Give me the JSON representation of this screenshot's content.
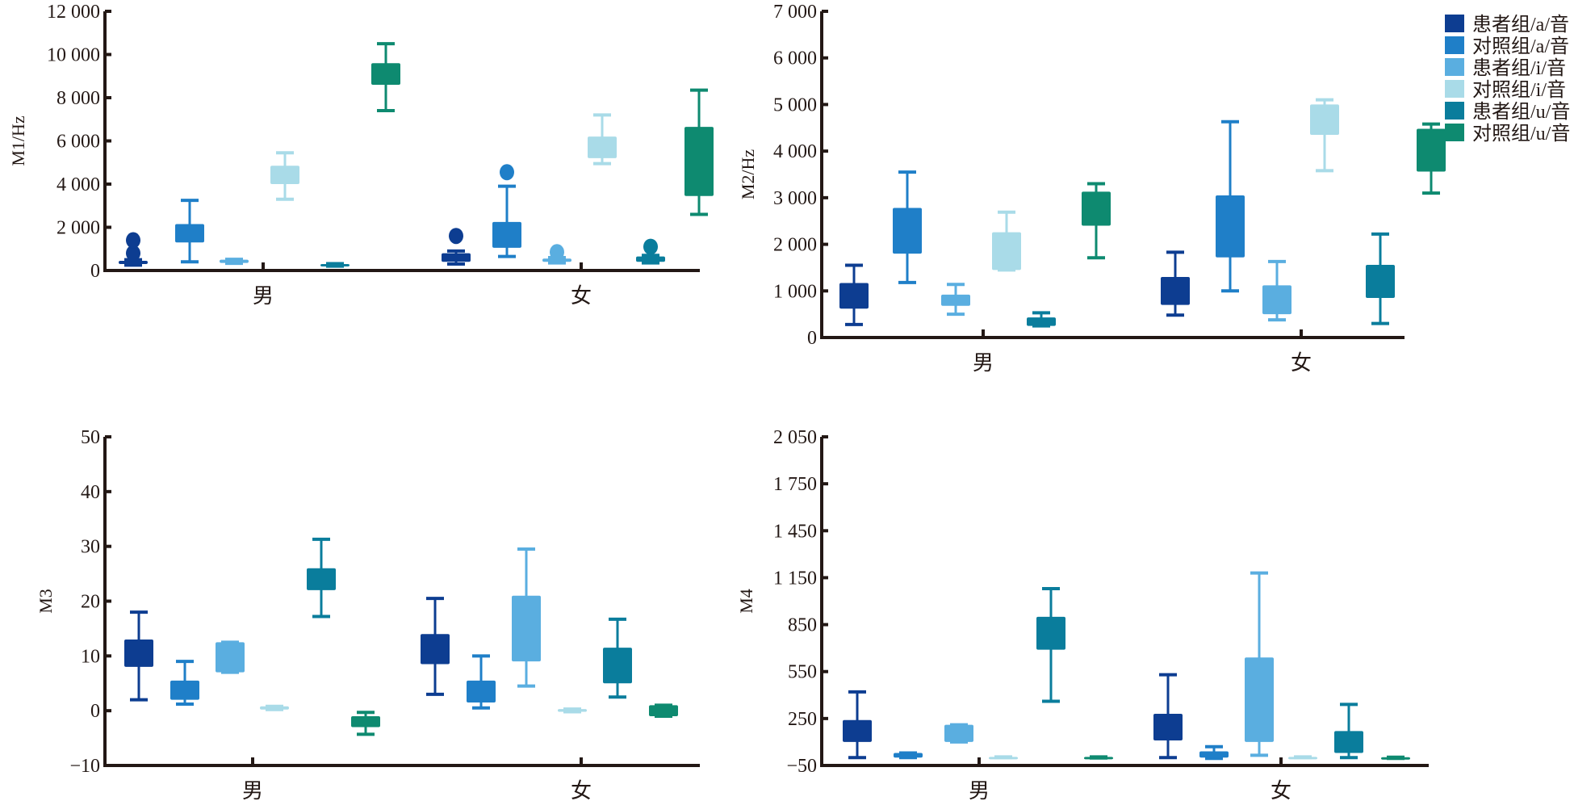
{
  "legend": {
    "position": "top-right",
    "items": [
      {
        "label": "患者组/a/音",
        "color": "#0d3d91"
      },
      {
        "label": "对照组/a/音",
        "color": "#1f7fc8"
      },
      {
        "label": "患者组/i/音",
        "color": "#5aaee0"
      },
      {
        "label": "对照组/i/音",
        "color": "#a9dbe8"
      },
      {
        "label": "患者组/u/音",
        "color": "#0a7d9c"
      },
      {
        "label": "对照组/u/音",
        "color": "#0e8a70"
      }
    ]
  },
  "chart_data": [
    {
      "type": "box",
      "id": "m1",
      "title": "",
      "ylabel": "M1/Hz",
      "xlabel": "",
      "ylim": [
        0,
        12000
      ],
      "yticks": [
        0,
        2000,
        4000,
        6000,
        8000,
        10000,
        12000
      ],
      "ytick_labels": [
        "0",
        "2 000",
        "4 000",
        "6 000",
        "8 000",
        "10 000",
        "12 000"
      ],
      "categories": [
        "男",
        "女"
      ],
      "series": [
        {
          "name": "患者组/a/音",
          "boxes": [
            {
              "min": 250,
              "q1": 300,
              "q3": 450,
              "max": 500,
              "outliers": [
                800,
                1400
              ]
            },
            {
              "min": 300,
              "q1": 400,
              "q3": 800,
              "max": 900,
              "outliers": [
                1600
              ]
            }
          ]
        },
        {
          "name": "对照组/a/音",
          "boxes": [
            {
              "min": 400,
              "q1": 1300,
              "q3": 2150,
              "max": 3250,
              "outliers": []
            },
            {
              "min": 650,
              "q1": 1050,
              "q3": 2250,
              "max": 3900,
              "outliers": [
                4550
              ]
            }
          ]
        },
        {
          "name": "患者组/i/音",
          "boxes": [
            {
              "min": 330,
              "q1": 350,
              "q3": 500,
              "max": 520,
              "outliers": []
            },
            {
              "min": 350,
              "q1": 400,
              "q3": 550,
              "max": 600,
              "outliers": [
                850
              ]
            }
          ]
        },
        {
          "name": "对照组/i/音",
          "boxes": [
            {
              "min": 3300,
              "q1": 4000,
              "q3": 4850,
              "max": 5450,
              "outliers": []
            },
            {
              "min": 4950,
              "q1": 5200,
              "q3": 6200,
              "max": 7200,
              "outliers": []
            }
          ]
        },
        {
          "name": "患者组/u/音",
          "boxes": [
            {
              "min": 200,
              "q1": 220,
              "q3": 300,
              "max": 320,
              "outliers": []
            },
            {
              "min": 350,
              "q1": 400,
              "q3": 650,
              "max": 700,
              "outliers": [
                1100
              ]
            }
          ]
        },
        {
          "name": "对照组/u/音",
          "boxes": [
            {
              "min": 7400,
              "q1": 8600,
              "q3": 9600,
              "max": 10500,
              "outliers": []
            },
            {
              "min": 2600,
              "q1": 3450,
              "q3": 6650,
              "max": 8350,
              "outliers": []
            }
          ]
        }
      ]
    },
    {
      "type": "box",
      "id": "m2",
      "title": "",
      "ylabel": "M2/Hz",
      "xlabel": "",
      "ylim": [
        0,
        7000
      ],
      "yticks": [
        0,
        1000,
        2000,
        3000,
        4000,
        5000,
        6000,
        7000
      ],
      "ytick_labels": [
        "0",
        "1 000",
        "2 000",
        "3 000",
        "4 000",
        "5 000",
        "6 000",
        "7 000"
      ],
      "categories": [
        "男",
        "女"
      ],
      "series": [
        {
          "name": "患者组/a/音",
          "boxes": [
            {
              "min": 280,
              "q1": 620,
              "q3": 1170,
              "max": 1550,
              "outliers": []
            },
            {
              "min": 480,
              "q1": 700,
              "q3": 1300,
              "max": 1830,
              "outliers": []
            }
          ]
        },
        {
          "name": "对照组/a/音",
          "boxes": [
            {
              "min": 1180,
              "q1": 1800,
              "q3": 2780,
              "max": 3550,
              "outliers": []
            },
            {
              "min": 1000,
              "q1": 1720,
              "q3": 3050,
              "max": 4630,
              "outliers": []
            }
          ]
        },
        {
          "name": "患者组/i/音",
          "boxes": [
            {
              "min": 500,
              "q1": 680,
              "q3": 920,
              "max": 1140,
              "outliers": []
            },
            {
              "min": 380,
              "q1": 500,
              "q3": 1120,
              "max": 1630,
              "outliers": []
            }
          ]
        },
        {
          "name": "对照组/i/音",
          "boxes": [
            {
              "min": 1450,
              "q1": 1450,
              "q3": 2260,
              "max": 2690,
              "outliers": []
            },
            {
              "min": 3580,
              "q1": 4350,
              "q3": 5000,
              "max": 5100,
              "outliers": []
            }
          ]
        },
        {
          "name": "患者组/u/音",
          "boxes": [
            {
              "min": 250,
              "q1": 250,
              "q3": 430,
              "max": 530,
              "outliers": []
            },
            {
              "min": 300,
              "q1": 850,
              "q3": 1560,
              "max": 2220,
              "outliers": []
            }
          ]
        },
        {
          "name": "对照组/u/音",
          "boxes": [
            {
              "min": 1710,
              "q1": 2400,
              "q3": 3130,
              "max": 3300,
              "outliers": []
            },
            {
              "min": 3100,
              "q1": 3560,
              "q3": 4480,
              "max": 4580,
              "outliers": []
            }
          ]
        }
      ]
    },
    {
      "type": "box",
      "id": "m3",
      "title": "",
      "ylabel": "M3",
      "xlabel": "",
      "ylim": [
        -10,
        50
      ],
      "yticks": [
        -10,
        0,
        10,
        20,
        30,
        40,
        50
      ],
      "ytick_labels": [
        "−10",
        "0",
        "10",
        "20",
        "30",
        "40",
        "50"
      ],
      "categories": [
        "男",
        "女"
      ],
      "series": [
        {
          "name": "患者组/a/音",
          "boxes": [
            {
              "min": 2,
              "q1": 8,
              "q3": 13,
              "max": 18,
              "outliers": []
            },
            {
              "min": 3,
              "q1": 8.5,
              "q3": 14,
              "max": 20.5,
              "outliers": []
            }
          ]
        },
        {
          "name": "对照组/a/音",
          "boxes": [
            {
              "min": 1.2,
              "q1": 2,
              "q3": 5.5,
              "max": 9,
              "outliers": []
            },
            {
              "min": 0.5,
              "q1": 1.5,
              "q3": 5.5,
              "max": 10,
              "outliers": []
            }
          ]
        },
        {
          "name": "患者组/i/音",
          "boxes": [
            {
              "min": 7,
              "q1": 7,
              "q3": 12.5,
              "max": 12.5,
              "outliers": []
            },
            {
              "min": 4.5,
              "q1": 9,
              "q3": 21,
              "max": 29.5,
              "outliers": []
            }
          ]
        },
        {
          "name": "对照组/i/音",
          "boxes": [
            {
              "min": 0.2,
              "q1": 0.2,
              "q3": 0.8,
              "max": 0.8,
              "outliers": []
            },
            {
              "min": -0.2,
              "q1": -0.2,
              "q3": 0.3,
              "max": 0.3,
              "outliers": []
            }
          ]
        },
        {
          "name": "患者组/u/音",
          "boxes": [
            {
              "min": 17.2,
              "q1": 22,
              "q3": 26,
              "max": 31.3,
              "outliers": []
            },
            {
              "min": 2.5,
              "q1": 5,
              "q3": 11.5,
              "max": 16.7,
              "outliers": []
            }
          ]
        },
        {
          "name": "对照组/u/音",
          "boxes": [
            {
              "min": -4.3,
              "q1": -3,
              "q3": -1,
              "max": -0.3,
              "outliers": []
            },
            {
              "min": -1,
              "q1": -1,
              "q3": 1,
              "max": 1,
              "outliers": []
            }
          ]
        }
      ]
    },
    {
      "type": "box",
      "id": "m4",
      "title": "",
      "ylabel": "M4",
      "xlabel": "",
      "ylim": [
        -50,
        2050
      ],
      "yticks": [
        -50,
        250,
        550,
        850,
        1150,
        1450,
        1750,
        2050
      ],
      "ytick_labels": [
        "−50",
        "250",
        "550",
        "850",
        "1 150",
        "1 450",
        "1 750",
        "2 050"
      ],
      "categories": [
        "男",
        "女"
      ],
      "series": [
        {
          "name": "患者组/a/音",
          "boxes": [
            {
              "min": 0,
              "q1": 100,
              "q3": 240,
              "max": 420,
              "outliers": []
            },
            {
              "min": 0,
              "q1": 110,
              "q3": 280,
              "max": 530,
              "outliers": []
            }
          ]
        },
        {
          "name": "对照组/a/音",
          "boxes": [
            {
              "min": 0,
              "q1": 0,
              "q3": 30,
              "max": 30,
              "outliers": []
            },
            {
              "min": -5,
              "q1": 0,
              "q3": 40,
              "max": 70,
              "outliers": []
            }
          ]
        },
        {
          "name": "患者组/i/音",
          "boxes": [
            {
              "min": 100,
              "q1": 100,
              "q3": 210,
              "max": 210,
              "outliers": []
            },
            {
              "min": 15,
              "q1": 100,
              "q3": 640,
              "max": 1180,
              "outliers": []
            }
          ]
        },
        {
          "name": "对照组/i/音",
          "boxes": [
            {
              "min": 0,
              "q1": 0,
              "q3": 5,
              "max": 5,
              "outliers": []
            },
            {
              "min": 0,
              "q1": 0,
              "q3": 5,
              "max": 5,
              "outliers": []
            }
          ]
        },
        {
          "name": "患者组/u/音",
          "boxes": [
            {
              "min": 360,
              "q1": 690,
              "q3": 900,
              "max": 1080,
              "outliers": []
            },
            {
              "min": 0,
              "q1": 30,
              "q3": 170,
              "max": 340,
              "outliers": []
            }
          ]
        },
        {
          "name": "对照组/u/音",
          "boxes": [
            {
              "min": -2,
              "q1": -2,
              "q3": 5,
              "max": 5,
              "outliers": []
            },
            {
              "min": -5,
              "q1": -5,
              "q3": 3,
              "max": 3,
              "outliers": []
            }
          ]
        }
      ]
    }
  ]
}
